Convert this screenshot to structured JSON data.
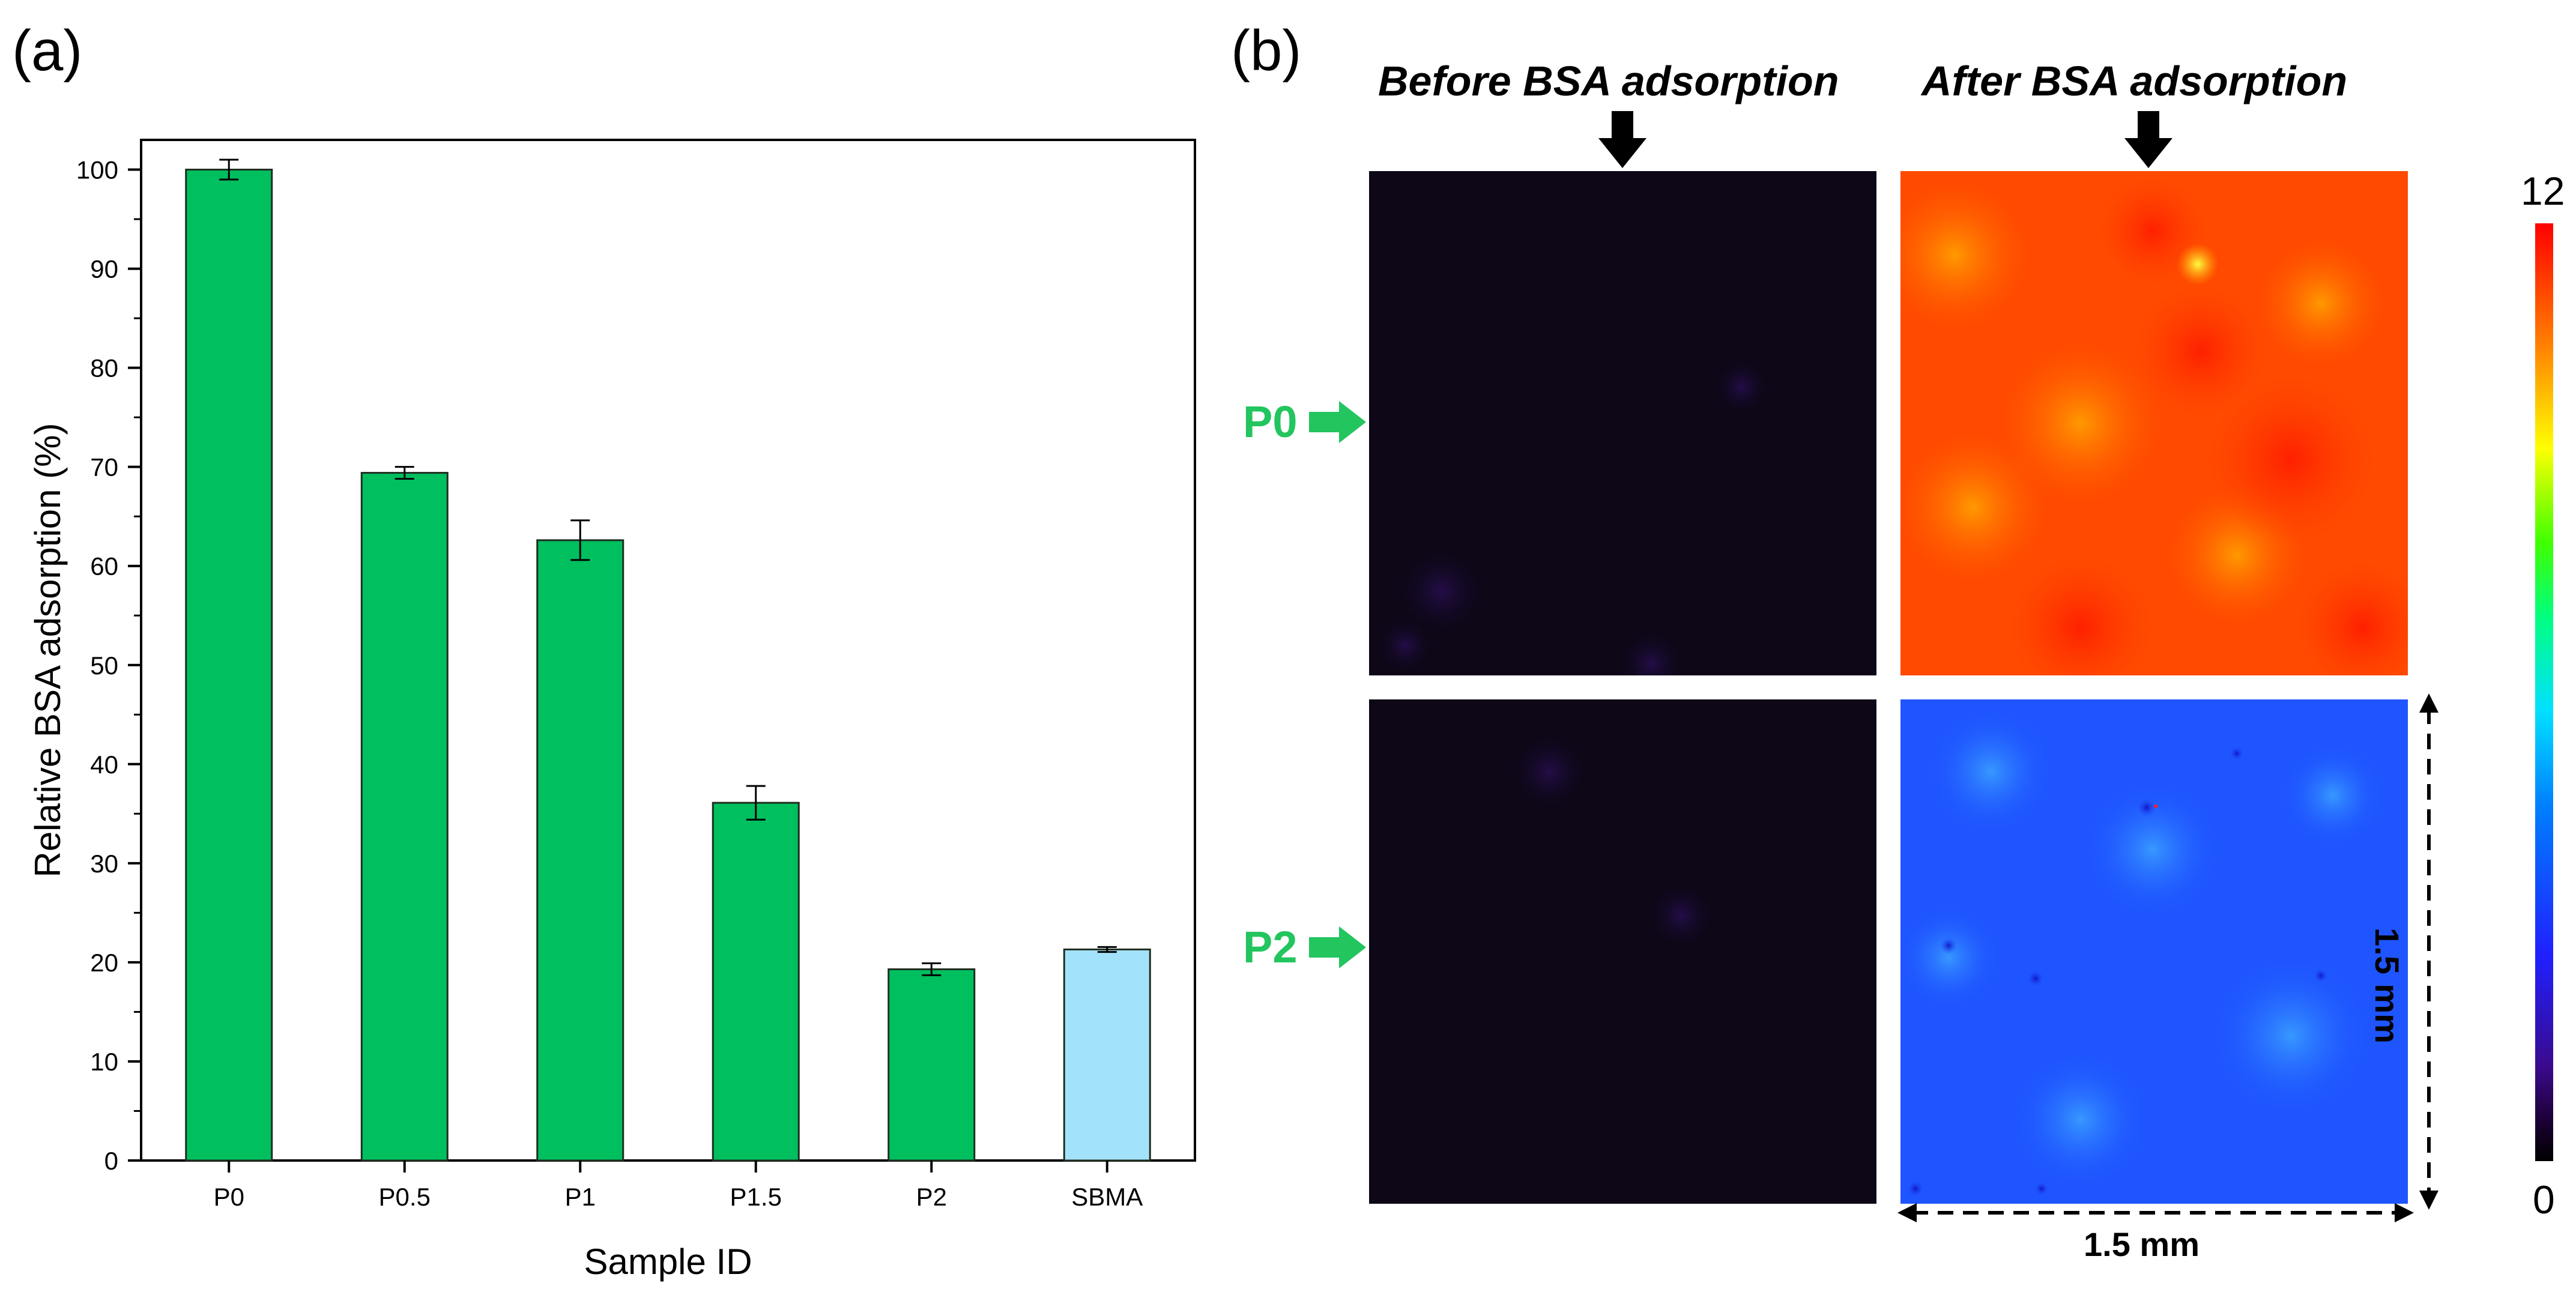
{
  "panel_a_label": "(a)",
  "panel_b_label": "(b)",
  "chart_data": {
    "type": "bar",
    "title": "",
    "xlabel": "Sample ID",
    "ylabel": "Relative BSA adsorption (%)",
    "ylim": [
      0,
      103
    ],
    "yticks": [
      0,
      10,
      20,
      30,
      40,
      50,
      60,
      70,
      80,
      90,
      100
    ],
    "categories": [
      "P0",
      "P0.5",
      "P1",
      "P1.5",
      "P2",
      "SBMA"
    ],
    "values": [
      100,
      69.4,
      62.6,
      36.1,
      19.3,
      21.3
    ],
    "errors": [
      1.0,
      0.6,
      2.0,
      1.7,
      0.6,
      0.25
    ],
    "colors": [
      "#00bf5f",
      "#00bf5f",
      "#00bf5f",
      "#00bf5f",
      "#00bf5f",
      "#a3e2fb"
    ]
  },
  "maps": {
    "col_before": "Before BSA adsorption",
    "col_after": "After BSA adsorption",
    "rows": [
      "P0",
      "P2"
    ],
    "colorbar_max": "12",
    "colorbar_min": "0",
    "dimension_h": "1.5 mm",
    "dimension_v": "1.5 mm"
  }
}
